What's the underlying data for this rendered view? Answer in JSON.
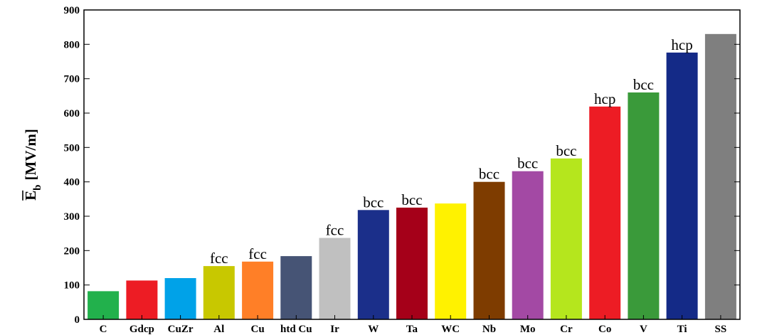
{
  "chart_data": {
    "type": "bar",
    "title": "",
    "xlabel": "",
    "ylabel": {
      "symbol": "E",
      "subscript": "b",
      "unit": "[MV/m]"
    },
    "ylim": [
      0,
      900
    ],
    "yticks": [
      0,
      100,
      200,
      300,
      400,
      500,
      600,
      700,
      800,
      900
    ],
    "grid": false,
    "categories": [
      "C",
      "Gdcp",
      "CuZr",
      "Al",
      "Cu",
      "htd Cu",
      "Ir",
      "W",
      "Ta",
      "WC",
      "Nb",
      "Mo",
      "Cr",
      "Co",
      "V",
      "Ti",
      "SS"
    ],
    "values": [
      82,
      113,
      120,
      155,
      168,
      184,
      237,
      318,
      325,
      337,
      400,
      431,
      468,
      619,
      660,
      776,
      830
    ],
    "labels": [
      "",
      "",
      "",
      "fcc",
      "fcc",
      "",
      "fcc",
      "bcc",
      "bcc",
      "",
      "bcc",
      "bcc",
      "bcc",
      "hcp",
      "bcc",
      "hcp",
      ""
    ],
    "colors": [
      "#22b14c",
      "#ed1c24",
      "#00a2e8",
      "#c8c800",
      "#ff7f27",
      "#465475",
      "#c0c0c0",
      "#1b2f8a",
      "#a50019",
      "#fff200",
      "#7e3c00",
      "#a349a4",
      "#b5e61d",
      "#ed1c24",
      "#3a9a3a",
      "#142a87",
      "#7f7f7f"
    ]
  }
}
